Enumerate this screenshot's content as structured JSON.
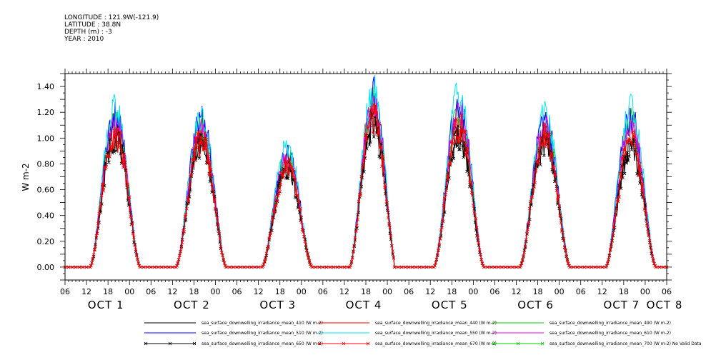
{
  "header": {
    "lines": [
      "LONGITUDE : 121.9W(-121.9)",
      "LATITUDE : 38.8N",
      "DEPTH (m) : -3",
      "YEAR : 2010"
    ]
  },
  "chart_data": {
    "type": "line",
    "ylabel": "W m-2",
    "ylim": [
      -0.1,
      1.5
    ],
    "yticks": [
      0.0,
      0.2,
      0.4,
      0.6,
      0.8,
      1.0,
      1.2,
      1.4
    ],
    "ytick_labels": [
      "0.00",
      "0.20",
      "0.40",
      "0.60",
      "0.80",
      "1.00",
      "1.20",
      "1.40"
    ],
    "xlim": [
      6,
      174
    ],
    "xticks": [
      6,
      12,
      18,
      24,
      30,
      36,
      42,
      48,
      54,
      60,
      66,
      72,
      78,
      84,
      90,
      96,
      102,
      108,
      114,
      120,
      126,
      132,
      138,
      144,
      150,
      156,
      162,
      168,
      174
    ],
    "xtick_labels": [
      "06",
      "12",
      "18",
      "00",
      "06",
      "12",
      "18",
      "00",
      "06",
      "12",
      "18",
      "00",
      "06",
      "12",
      "18",
      "00",
      "06",
      "12",
      "18",
      "00",
      "06",
      "12",
      "18",
      "00",
      "06",
      "12",
      "18",
      "00",
      "06"
    ],
    "day_labels": [
      {
        "x": 18,
        "text": "OCT  1"
      },
      {
        "x": 42,
        "text": "OCT  2"
      },
      {
        "x": 66,
        "text": "OCT  3"
      },
      {
        "x": 90,
        "text": "OCT  4"
      },
      {
        "x": 114,
        "text": "OCT  5"
      },
      {
        "x": 138,
        "text": "OCT  6"
      },
      {
        "x": 162,
        "text": "OCT  7"
      },
      {
        "x": 174,
        "text": "OCT  8"
      }
    ],
    "days": [
      {
        "center": 20,
        "start": 13,
        "end": 27,
        "peak": {
          "sea_surface_downwelling_irradiance_mean_410": 1.12,
          "sea_surface_downwelling_irradiance_mean_440": 1.05,
          "sea_surface_downwelling_irradiance_mean_490": 1.18,
          "sea_surface_downwelling_irradiance_mean_510": 1.22,
          "sea_surface_downwelling_irradiance_mean_550": 1.25,
          "sea_surface_downwelling_irradiance_mean_610": 1.14,
          "sea_surface_downwelling_irradiance_mean_650": 1.04,
          "sea_surface_downwelling_irradiance_mean_670": 1.08
        }
      },
      {
        "center": 44,
        "start": 37,
        "end": 51,
        "peak": {
          "sea_surface_downwelling_irradiance_mean_410": 1.0,
          "sea_surface_downwelling_irradiance_mean_440": 1.02,
          "sea_surface_downwelling_irradiance_mean_490": 1.13,
          "sea_surface_downwelling_irradiance_mean_510": 1.17,
          "sea_surface_downwelling_irradiance_mean_550": 1.19,
          "sea_surface_downwelling_irradiance_mean_610": 1.09,
          "sea_surface_downwelling_irradiance_mean_650": 0.98,
          "sea_surface_downwelling_irradiance_mean_670": 1.02
        }
      },
      {
        "center": 68,
        "start": 61,
        "end": 75,
        "peak": {
          "sea_surface_downwelling_irradiance_mean_410": 0.8,
          "sea_surface_downwelling_irradiance_mean_440": 0.82,
          "sea_surface_downwelling_irradiance_mean_490": 0.88,
          "sea_surface_downwelling_irradiance_mean_510": 0.92,
          "sea_surface_downwelling_irradiance_mean_550": 0.95,
          "sea_surface_downwelling_irradiance_mean_610": 0.86,
          "sea_surface_downwelling_irradiance_mean_650": 0.78,
          "sea_surface_downwelling_irradiance_mean_670": 0.8
        }
      },
      {
        "center": 92,
        "start": 85,
        "end": 98,
        "peak": {
          "sea_surface_downwelling_irradiance_mean_410": 1.18,
          "sea_surface_downwelling_irradiance_mean_440": 1.22,
          "sea_surface_downwelling_irradiance_mean_490": 1.33,
          "sea_surface_downwelling_irradiance_mean_510": 1.38,
          "sea_surface_downwelling_irradiance_mean_550": 1.41,
          "sea_surface_downwelling_irradiance_mean_610": 1.28,
          "sea_surface_downwelling_irradiance_mean_650": 1.15,
          "sea_surface_downwelling_irradiance_mean_670": 1.2
        }
      },
      {
        "center": 116,
        "start": 109,
        "end": 123,
        "peak": {
          "sea_surface_downwelling_irradiance_mean_410": 1.08,
          "sea_surface_downwelling_irradiance_mean_440": 1.12,
          "sea_surface_downwelling_irradiance_mean_490": 1.24,
          "sea_surface_downwelling_irradiance_mean_510": 1.3,
          "sea_surface_downwelling_irradiance_mean_550": 1.36,
          "sea_surface_downwelling_irradiance_mean_610": 1.22,
          "sea_surface_downwelling_irradiance_mean_650": 1.05,
          "sea_surface_downwelling_irradiance_mean_670": 1.12
        }
      },
      {
        "center": 140,
        "start": 133,
        "end": 147,
        "peak": {
          "sea_surface_downwelling_irradiance_mean_410": 1.0,
          "sea_surface_downwelling_irradiance_mean_440": 1.05,
          "sea_surface_downwelling_irradiance_mean_490": 1.12,
          "sea_surface_downwelling_irradiance_mean_510": 1.17,
          "sea_surface_downwelling_irradiance_mean_550": 1.2,
          "sea_surface_downwelling_irradiance_mean_610": 1.1,
          "sea_surface_downwelling_irradiance_mean_650": 0.98,
          "sea_surface_downwelling_irradiance_mean_670": 1.02
        }
      },
      {
        "center": 164,
        "start": 157,
        "end": 171,
        "peak": {
          "sea_surface_downwelling_irradiance_mean_410": 0.96,
          "sea_surface_downwelling_irradiance_mean_440": 1.03,
          "sea_surface_downwelling_irradiance_mean_490": 1.15,
          "sea_surface_downwelling_irradiance_mean_510": 1.2,
          "sea_surface_downwelling_irradiance_mean_550": 1.25,
          "sea_surface_downwelling_irradiance_mean_610": 1.12,
          "sea_surface_downwelling_irradiance_mean_650": 0.95,
          "sea_surface_downwelling_irradiance_mean_670": 1.0
        }
      }
    ],
    "series": [
      {
        "name": "sea_surface_downwelling_irradiance_mean_410 (W m-2)",
        "key": "sea_surface_downwelling_irradiance_mean_410",
        "color": "#000000",
        "marker": false
      },
      {
        "name": "sea_surface_downwelling_irradiance_mean_440 (W m-2)",
        "key": "sea_surface_downwelling_irradiance_mean_440",
        "color": "#ff0000",
        "marker": false
      },
      {
        "name": "sea_surface_downwelling_irradiance_mean_490 (W m-2)",
        "key": "sea_surface_downwelling_irradiance_mean_490",
        "color": "#00cc00",
        "marker": false
      },
      {
        "name": "sea_surface_downwelling_irradiance_mean_510 (W m-2)",
        "key": "sea_surface_downwelling_irradiance_mean_510",
        "color": "#0000ff",
        "marker": false
      },
      {
        "name": "sea_surface_downwelling_irradiance_mean_550 (W m-2)",
        "key": "sea_surface_downwelling_irradiance_mean_550",
        "color": "#00e5ee",
        "marker": false
      },
      {
        "name": "sea_surface_downwelling_irradiance_mean_610 (W m-2)",
        "key": "sea_surface_downwelling_irradiance_mean_610",
        "color": "#ee00ee",
        "marker": false
      },
      {
        "name": "sea_surface_downwelling_irradiance_mean_650 (W m-2)",
        "key": "sea_surface_downwelling_irradiance_mean_650",
        "color": "#000000",
        "marker": true
      },
      {
        "name": "sea_surface_downwelling_irradiance_mean_670 (W m-2)",
        "key": "sea_surface_downwelling_irradiance_mean_670",
        "color": "#ff0000",
        "marker": true
      },
      {
        "name": "sea_surface_downwelling_irradiance_mean_700 (W m-2) No Valid Data",
        "key": "sea_surface_downwelling_irradiance_mean_700",
        "color": "#00cc00",
        "marker": true
      }
    ]
  }
}
